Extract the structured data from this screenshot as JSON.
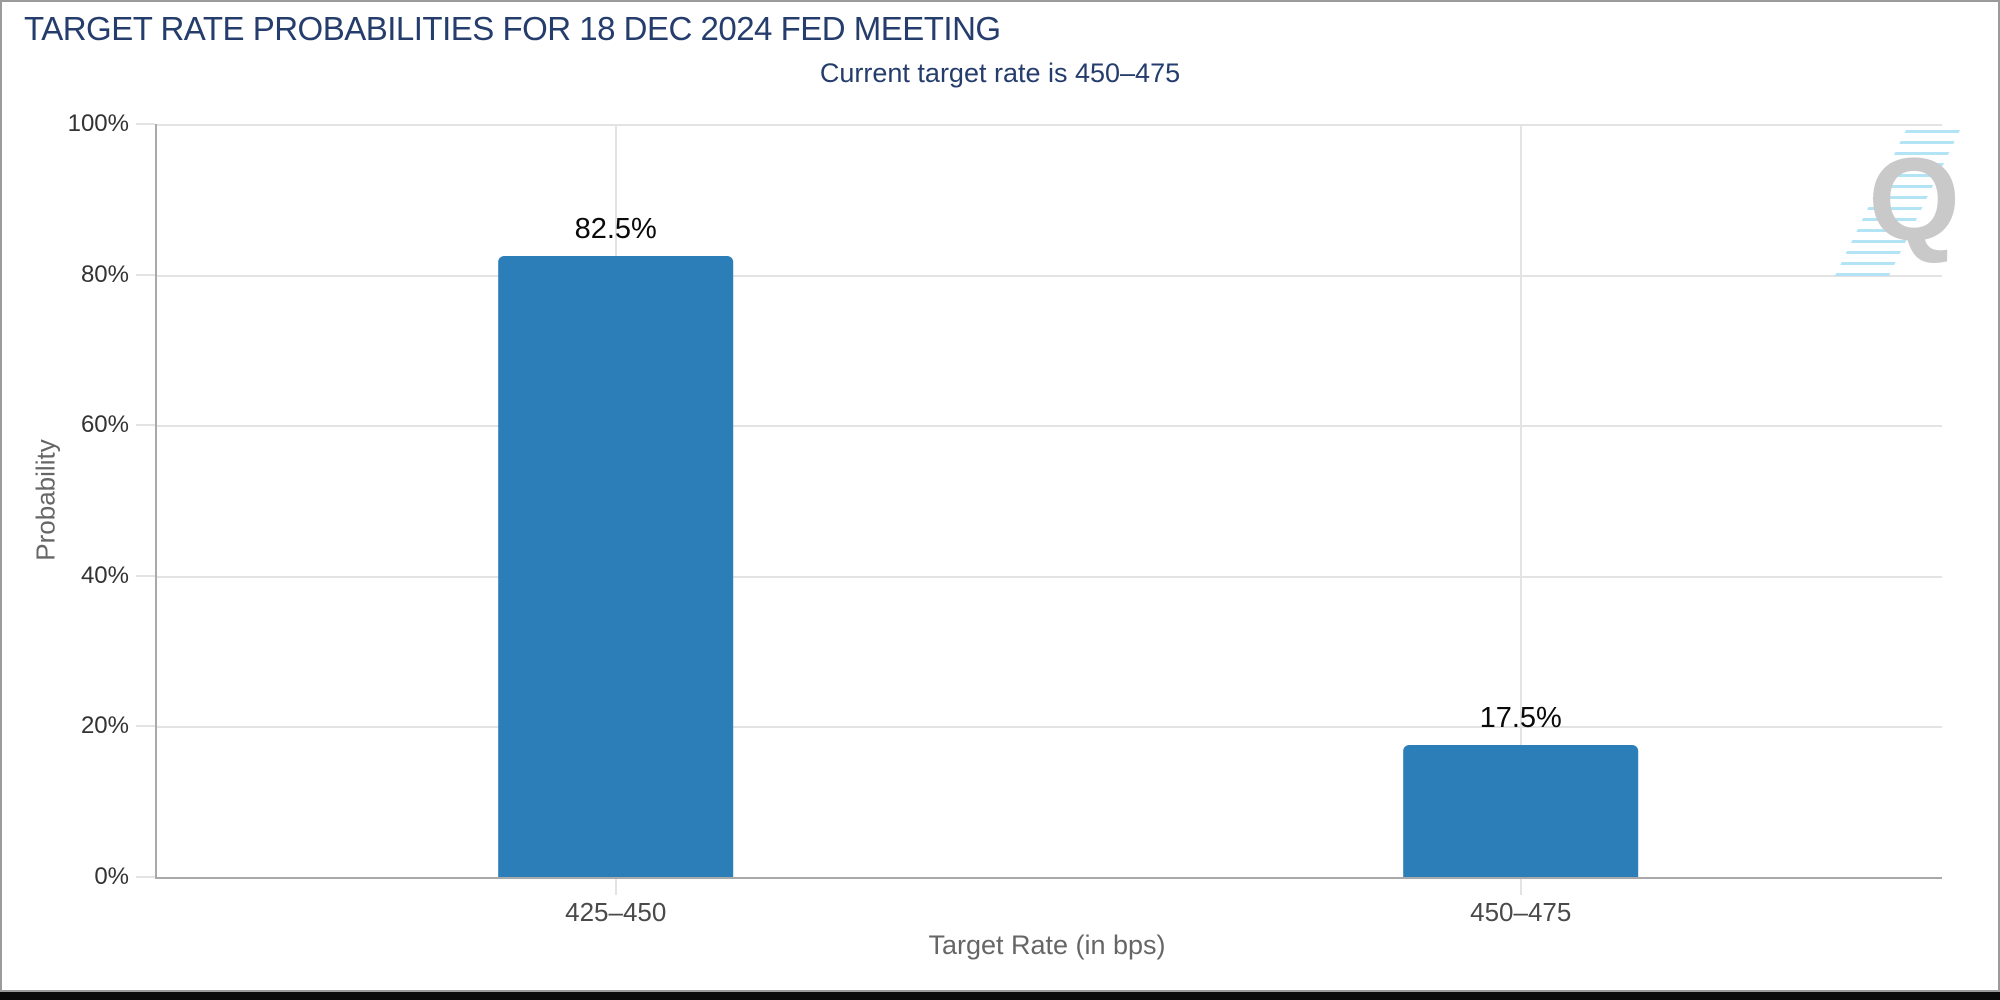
{
  "header": {
    "title": "TARGET RATE PROBABILITIES FOR 18 DEC 2024 FED MEETING",
    "subtitle": "Current target rate is 450–475"
  },
  "chart_data": {
    "type": "bar",
    "title": "TARGET RATE PROBABILITIES FOR 18 DEC 2024 FED MEETING",
    "subtitle": "Current target rate is 450–475",
    "categories": [
      "425–450",
      "450–475"
    ],
    "values": [
      82.5,
      17.5
    ],
    "value_labels": [
      "82.5%",
      "17.5%"
    ],
    "xlabel": "Target Rate (in bps)",
    "ylabel": "Probability",
    "ylim": [
      0,
      100
    ],
    "ytick_values": [
      0,
      20,
      40,
      60,
      80,
      100
    ],
    "ytick_labels": [
      "0%",
      "20%",
      "40%",
      "60%",
      "80%",
      "100%"
    ],
    "grid": true,
    "legend": "none",
    "bar_color": "#2b7eb7"
  },
  "watermark": {
    "letter": "Q"
  },
  "colors": {
    "title_navy": "#253d6c",
    "bar_blue": "#2b7eb7",
    "gridline": "#e3e3e3",
    "axis_line": "#a9a9a9",
    "tick_text": "#333333",
    "axis_title_text": "#666666",
    "frame_border": "#9b9b9b",
    "bottom_bar": "#0a0a0a",
    "watermark_gray": "#c9c9c9",
    "watermark_blue": "#aee3f6"
  }
}
